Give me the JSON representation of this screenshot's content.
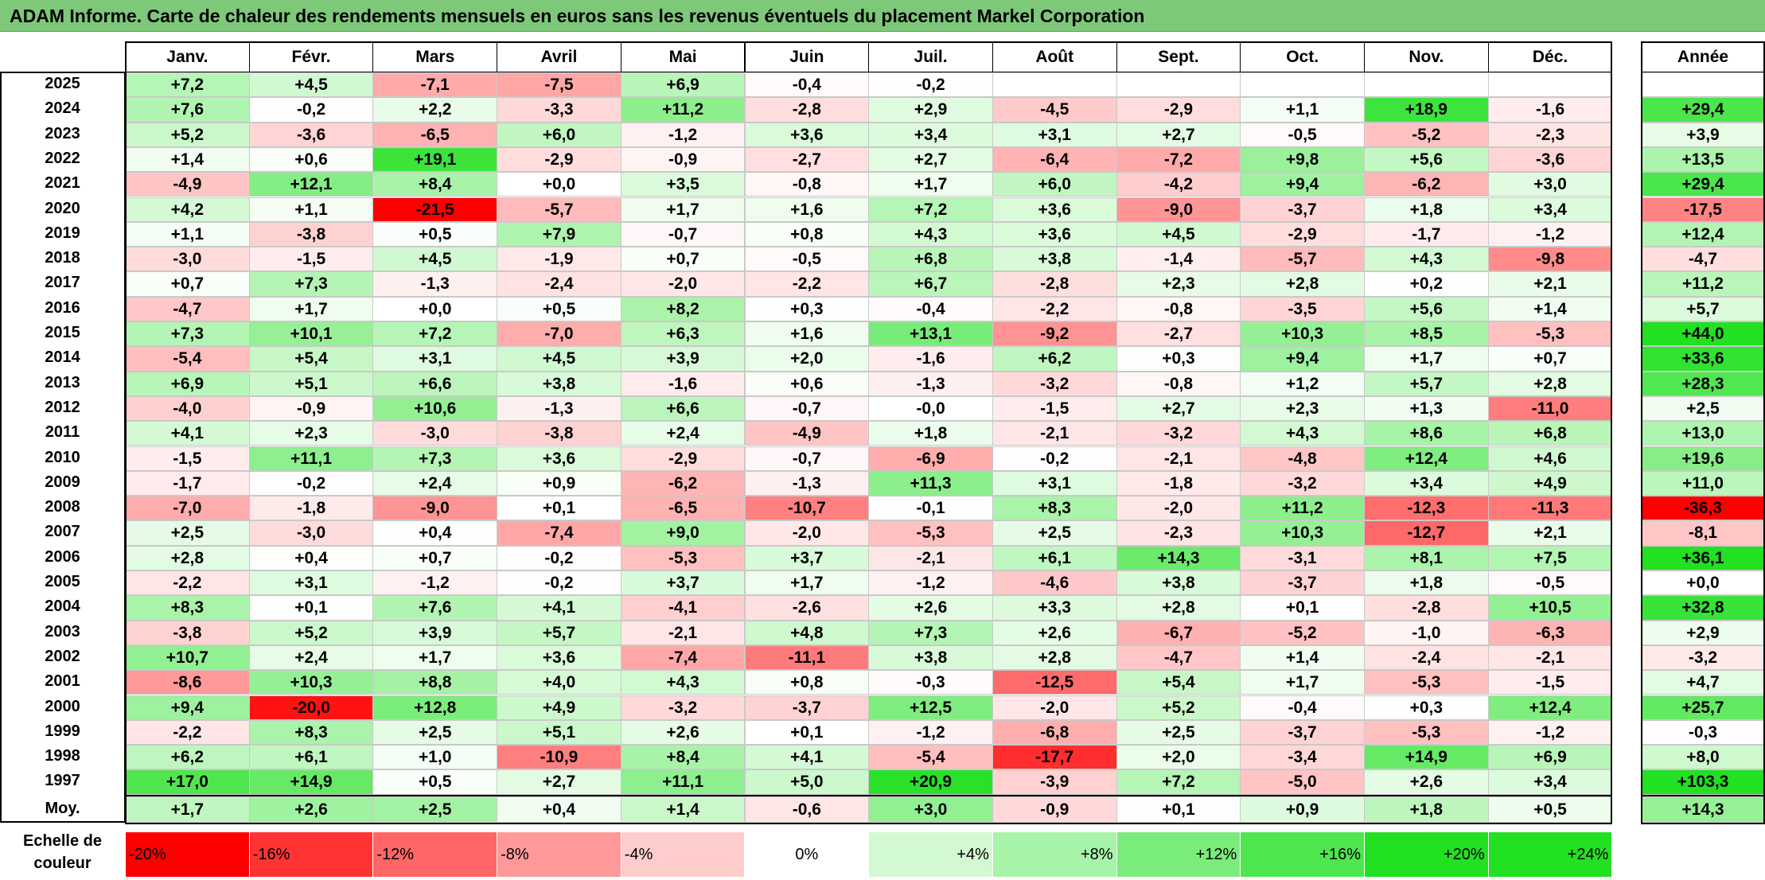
{
  "title": "ADAM Informe. Carte de chaleur des rendements mensuels en euros sans les revenus éventuels du placement Markel Corporation",
  "colors": {
    "title_bg": "#7ec87a",
    "neg_max": "#ff0000",
    "neutral": "#ffffff",
    "pos_max": "#22e022"
  },
  "chart_data": {
    "type": "heatmap",
    "title": "ADAM Informe. Carte de chaleur des rendements mensuels en euros sans les revenus éventuels du placement Markel Corporation",
    "months": [
      "Janv.",
      "Févr.",
      "Mars",
      "Avril",
      "Mai",
      "Juin",
      "Juil.",
      "Août",
      "Sept.",
      "Oct.",
      "Nov.",
      "Déc."
    ],
    "year_header": "Année",
    "unit": "%",
    "rows": [
      {
        "year": "2025",
        "values": [
          "+7,2",
          "+4,5",
          "-7,1",
          "-7,5",
          "+6,9",
          "-0,4",
          "-0,2",
          "",
          "",
          "",
          "",
          ""
        ],
        "annual": ""
      },
      {
        "year": "2024",
        "values": [
          "+7,6",
          "-0,2",
          "+2,2",
          "-3,3",
          "+11,2",
          "-2,8",
          "+2,9",
          "-4,5",
          "-2,9",
          "+1,1",
          "+18,9",
          "-1,6"
        ],
        "annual": "+29,4"
      },
      {
        "year": "2023",
        "values": [
          "+5,2",
          "-3,6",
          "-6,5",
          "+6,0",
          "-1,2",
          "+3,6",
          "+3,4",
          "+3,1",
          "+2,7",
          "-0,5",
          "-5,2",
          "-2,3"
        ],
        "annual": "+3,9"
      },
      {
        "year": "2022",
        "values": [
          "+1,4",
          "+0,6",
          "+19,1",
          "-2,9",
          "-0,9",
          "-2,7",
          "+2,7",
          "-6,4",
          "-7,2",
          "+9,8",
          "+5,6",
          "-3,6"
        ],
        "annual": "+13,5"
      },
      {
        "year": "2021",
        "values": [
          "-4,9",
          "+12,1",
          "+8,4",
          "+0,0",
          "+3,5",
          "-0,8",
          "+1,7",
          "+6,0",
          "-4,2",
          "+9,4",
          "-6,2",
          "+3,0"
        ],
        "annual": "+29,4"
      },
      {
        "year": "2020",
        "values": [
          "+4,2",
          "+1,1",
          "-21,5",
          "-5,7",
          "+1,7",
          "+1,6",
          "+7,2",
          "+3,6",
          "-9,0",
          "-3,7",
          "+1,8",
          "+3,4"
        ],
        "annual": "-17,5"
      },
      {
        "year": "2019",
        "values": [
          "+1,1",
          "-3,8",
          "+0,5",
          "+7,9",
          "-0,7",
          "+0,8",
          "+4,3",
          "+3,6",
          "+4,5",
          "-2,9",
          "-1,7",
          "-1,2"
        ],
        "annual": "+12,4"
      },
      {
        "year": "2018",
        "values": [
          "-3,0",
          "-1,5",
          "+4,5",
          "-1,9",
          "+0,7",
          "-0,5",
          "+6,8",
          "+3,8",
          "-1,4",
          "-5,7",
          "+4,3",
          "-9,8"
        ],
        "annual": "-4,7"
      },
      {
        "year": "2017",
        "values": [
          "+0,7",
          "+7,3",
          "-1,3",
          "-2,4",
          "-2,0",
          "-2,2",
          "+6,7",
          "-2,8",
          "+2,3",
          "+2,8",
          "+0,2",
          "+2,1"
        ],
        "annual": "+11,2"
      },
      {
        "year": "2016",
        "values": [
          "-4,7",
          "+1,7",
          "+0,0",
          "+0,5",
          "+8,2",
          "+0,3",
          "-0,4",
          "-2,2",
          "-0,8",
          "-3,5",
          "+5,6",
          "+1,4"
        ],
        "annual": "+5,7"
      },
      {
        "year": "2015",
        "values": [
          "+7,3",
          "+10,1",
          "+7,2",
          "-7,0",
          "+6,3",
          "+1,6",
          "+13,1",
          "-9,2",
          "-2,7",
          "+10,3",
          "+8,5",
          "-5,3"
        ],
        "annual": "+44,0"
      },
      {
        "year": "2014",
        "values": [
          "-5,4",
          "+5,4",
          "+3,1",
          "+4,5",
          "+3,9",
          "+2,0",
          "-1,6",
          "+6,2",
          "+0,3",
          "+9,4",
          "+1,7",
          "+0,7"
        ],
        "annual": "+33,6"
      },
      {
        "year": "2013",
        "values": [
          "+6,9",
          "+5,1",
          "+6,6",
          "+3,8",
          "-1,6",
          "+0,6",
          "-1,3",
          "-3,2",
          "-0,8",
          "+1,2",
          "+5,7",
          "+2,8"
        ],
        "annual": "+28,3"
      },
      {
        "year": "2012",
        "values": [
          "-4,0",
          "-0,9",
          "+10,6",
          "-1,3",
          "+6,6",
          "-0,7",
          "-0,0",
          "-1,5",
          "+2,7",
          "+2,3",
          "+1,3",
          "-11,0"
        ],
        "annual": "+2,5"
      },
      {
        "year": "2011",
        "values": [
          "+4,1",
          "+2,3",
          "-3,0",
          "-3,8",
          "+2,4",
          "-4,9",
          "+1,8",
          "-2,1",
          "-3,2",
          "+4,3",
          "+8,6",
          "+6,8"
        ],
        "annual": "+13,0"
      },
      {
        "year": "2010",
        "values": [
          "-1,5",
          "+11,1",
          "+7,3",
          "+3,6",
          "-2,9",
          "-0,7",
          "-6,9",
          "-0,2",
          "-2,1",
          "-4,8",
          "+12,4",
          "+4,6"
        ],
        "annual": "+19,6"
      },
      {
        "year": "2009",
        "values": [
          "-1,7",
          "-0,2",
          "+2,4",
          "+0,9",
          "-6,2",
          "-1,3",
          "+11,3",
          "+3,1",
          "-1,8",
          "-3,2",
          "+3,4",
          "+4,9"
        ],
        "annual": "+11,0"
      },
      {
        "year": "2008",
        "values": [
          "-7,0",
          "-1,8",
          "-9,0",
          "+0,1",
          "-6,5",
          "-10,7",
          "-0,1",
          "+8,3",
          "-2,0",
          "+11,2",
          "-12,3",
          "-11,3"
        ],
        "annual": "-36,3"
      },
      {
        "year": "2007",
        "values": [
          "+2,5",
          "-3,0",
          "+0,4",
          "-7,4",
          "+9,0",
          "-2,0",
          "-5,3",
          "+2,5",
          "-2,3",
          "+10,3",
          "-12,7",
          "+2,1"
        ],
        "annual": "-8,1"
      },
      {
        "year": "2006",
        "values": [
          "+2,8",
          "+0,4",
          "+0,7",
          "-0,2",
          "-5,3",
          "+3,7",
          "-2,1",
          "+6,1",
          "+14,3",
          "-3,1",
          "+8,1",
          "+7,5"
        ],
        "annual": "+36,1"
      },
      {
        "year": "2005",
        "values": [
          "-2,2",
          "+3,1",
          "-1,2",
          "-0,2",
          "+3,7",
          "+1,7",
          "-1,2",
          "-4,6",
          "+3,8",
          "-3,7",
          "+1,8",
          "-0,5"
        ],
        "annual": "+0,0"
      },
      {
        "year": "2004",
        "values": [
          "+8,3",
          "+0,1",
          "+7,6",
          "+4,1",
          "-4,1",
          "-2,6",
          "+2,6",
          "+3,3",
          "+2,8",
          "+0,1",
          "-2,8",
          "+10,5"
        ],
        "annual": "+32,8"
      },
      {
        "year": "2003",
        "values": [
          "-3,8",
          "+5,2",
          "+3,9",
          "+5,7",
          "-2,1",
          "+4,8",
          "+7,3",
          "+2,6",
          "-6,7",
          "-5,2",
          "-1,0",
          "-6,3"
        ],
        "annual": "+2,9"
      },
      {
        "year": "2002",
        "values": [
          "+10,7",
          "+2,4",
          "+1,7",
          "+3,6",
          "-7,4",
          "-11,1",
          "+3,8",
          "+2,8",
          "-4,7",
          "+1,4",
          "-2,4",
          "-2,1"
        ],
        "annual": "-3,2"
      },
      {
        "year": "2001",
        "values": [
          "-8,6",
          "+10,3",
          "+8,8",
          "+4,0",
          "+4,3",
          "+0,8",
          "-0,3",
          "-12,5",
          "+5,4",
          "+1,7",
          "-5,3",
          "-1,5"
        ],
        "annual": "+4,7"
      },
      {
        "year": "2000",
        "values": [
          "+9,4",
          "-20,0",
          "+12,8",
          "+4,9",
          "-3,2",
          "-3,7",
          "+12,5",
          "-2,0",
          "+5,2",
          "-0,4",
          "+0,3",
          "+12,4"
        ],
        "annual": "+25,7"
      },
      {
        "year": "1999",
        "values": [
          "-2,2",
          "+8,3",
          "+2,5",
          "+5,1",
          "+2,6",
          "+0,1",
          "-1,2",
          "-6,8",
          "+2,5",
          "-3,7",
          "-5,3",
          "-1,2"
        ],
        "annual": "-0,3"
      },
      {
        "year": "1998",
        "values": [
          "+6,2",
          "+6,1",
          "+1,0",
          "-10,9",
          "+8,4",
          "+4,1",
          "-5,4",
          "-17,7",
          "+2,0",
          "-3,4",
          "+14,9",
          "+6,9"
        ],
        "annual": "+8,0"
      },
      {
        "year": "1997",
        "values": [
          "+17,0",
          "+14,9",
          "+0,5",
          "+2,7",
          "+11,1",
          "+5,0",
          "+20,9",
          "-3,9",
          "+7,2",
          "-5,0",
          "+2,6",
          "+3,4"
        ],
        "annual": "+103,3"
      }
    ],
    "average": {
      "label": "Moy.",
      "values": [
        "+1,7",
        "+2,6",
        "+2,5",
        "+0,4",
        "+1,4",
        "-0,6",
        "+3,0",
        "-0,9",
        "+0,1",
        "+0,9",
        "+1,8",
        "+0,5"
      ],
      "annual": "+14,3"
    },
    "color_scale": {
      "label_line1": "Echelle de",
      "label_line2": "couleur",
      "stops": [
        "-20%",
        "-16%",
        "-12%",
        "-8%",
        "-4%",
        "0%",
        "+4%",
        "+8%",
        "+12%",
        "+16%",
        "+20%",
        "+24%"
      ]
    }
  }
}
